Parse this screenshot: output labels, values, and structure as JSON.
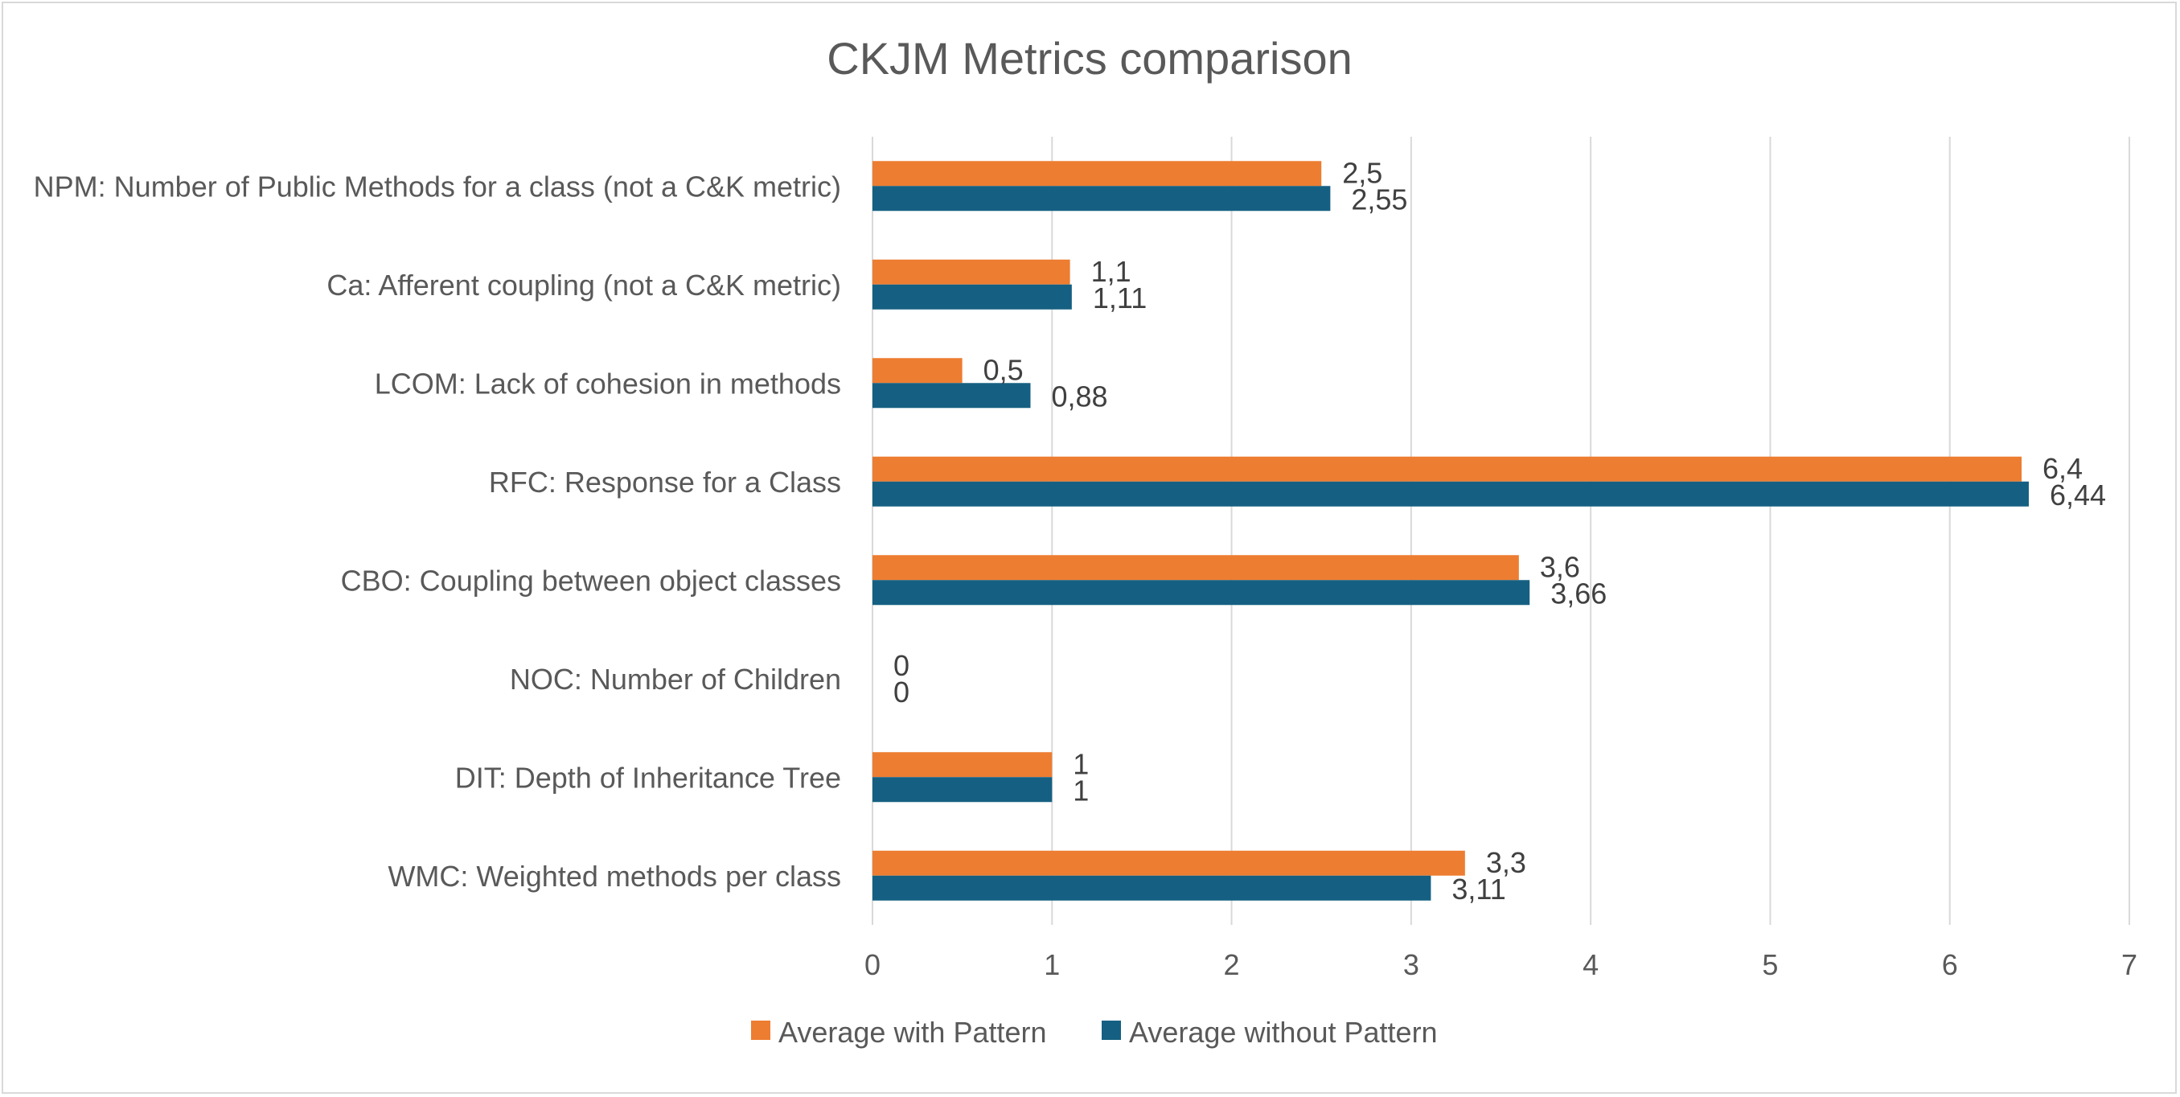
{
  "chart_data": {
    "type": "bar",
    "orientation": "horizontal",
    "title": "CKJM Metrics comparison",
    "categories": [
      "NPM: Number of Public Methods for a class (not a C&K metric)",
      "Ca: Afferent coupling (not a C&K metric)",
      "LCOM: Lack of cohesion in methods",
      "RFC: Response for a Class",
      "CBO: Coupling between object classes",
      "NOC: Number of Children",
      "DIT: Depth of Inheritance Tree",
      "WMC: Weighted methods per class"
    ],
    "series": [
      {
        "name": "Average with Pattern",
        "color": "#ed7d31",
        "values": [
          2.5,
          1.1,
          0.5,
          6.4,
          3.6,
          0,
          1,
          3.3
        ],
        "labels": [
          "2,5",
          "1,1",
          "0,5",
          "6,4",
          "3,6",
          "0",
          "1",
          "3,3"
        ]
      },
      {
        "name": "Average without Pattern",
        "color": "#156082",
        "values": [
          2.55,
          1.11,
          0.88,
          6.44,
          3.66,
          0,
          1,
          3.11
        ],
        "labels": [
          "2,55",
          "1,11",
          "0,88",
          "6,44",
          "3,66",
          "0",
          "1",
          "3,11"
        ]
      }
    ],
    "xlim": [
      0,
      7
    ],
    "xticks": [
      0,
      1,
      2,
      3,
      4,
      5,
      6,
      7
    ],
    "xtick_labels": [
      "0",
      "1",
      "2",
      "3",
      "4",
      "5",
      "6",
      "7"
    ],
    "grid": true,
    "legend_position": "bottom"
  }
}
